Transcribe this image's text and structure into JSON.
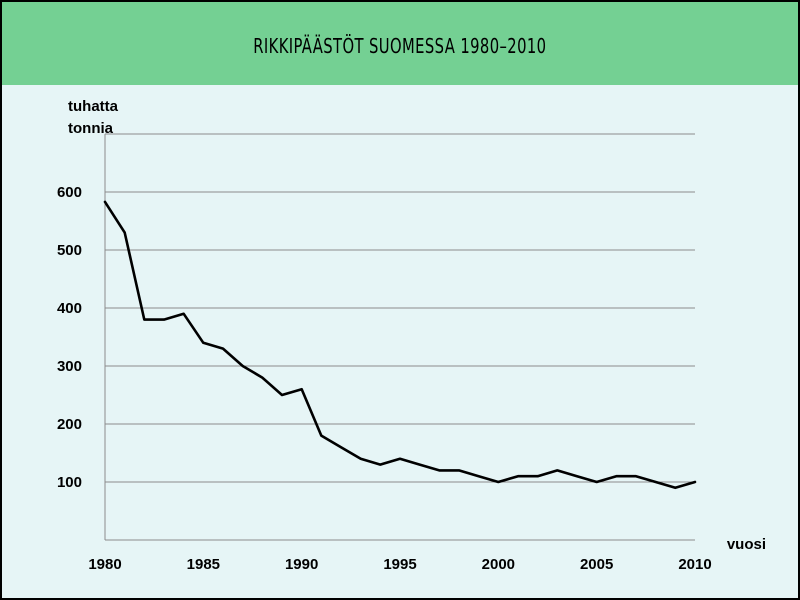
{
  "header": {
    "title": "RIKKIPÄÄSTÖT SUOMESSA 1980–2010"
  },
  "colors": {
    "background": "#e6f5f6",
    "header": "#74d093",
    "grid": "#8c8c8c",
    "line": "#000000"
  },
  "chart_data": {
    "type": "line",
    "title": "RIKKIPÄÄSTÖT SUOMESSA 1980–2010",
    "ylabel_lines": [
      "tuhatta",
      "tonnia"
    ],
    "xlabel": "vuosi",
    "xlim": [
      1980,
      2010
    ],
    "ylim": [
      0,
      700
    ],
    "xticks": [
      1980,
      1985,
      1990,
      1995,
      2000,
      2005,
      2010
    ],
    "yticks": [
      100,
      200,
      300,
      400,
      500,
      600
    ],
    "grid": true,
    "series": [
      {
        "x": [
          1980,
          1981,
          1982,
          1983,
          1984,
          1985,
          1986,
          1987,
          1988,
          1989,
          1990,
          1991,
          1992,
          1993,
          1994,
          1995,
          1996,
          1997,
          1998,
          1999,
          2000,
          2001,
          2002,
          2003,
          2004,
          2005,
          2006,
          2007,
          2008,
          2009,
          2010
        ],
        "y": [
          583,
          530,
          380,
          380,
          390,
          340,
          330,
          300,
          280,
          250,
          260,
          180,
          160,
          140,
          130,
          140,
          130,
          120,
          120,
          110,
          100,
          110,
          110,
          120,
          110,
          100,
          110,
          110,
          100,
          90,
          100
        ]
      }
    ]
  }
}
